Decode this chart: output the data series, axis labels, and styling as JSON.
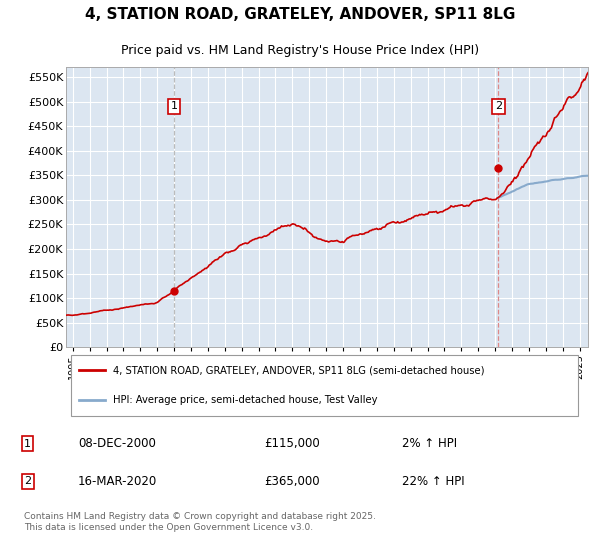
{
  "title": "4, STATION ROAD, GRATELEY, ANDOVER, SP11 8LG",
  "subtitle": "Price paid vs. HM Land Registry's House Price Index (HPI)",
  "title_fontsize": 11,
  "subtitle_fontsize": 9,
  "background_color": "#ffffff",
  "plot_bg_color": "#dce6f1",
  "grid_color": "#ffffff",
  "ylabel_ticks": [
    "£0",
    "£50K",
    "£100K",
    "£150K",
    "£200K",
    "£250K",
    "£300K",
    "£350K",
    "£400K",
    "£450K",
    "£500K",
    "£550K"
  ],
  "ytick_values": [
    0,
    50000,
    100000,
    150000,
    200000,
    250000,
    300000,
    350000,
    400000,
    450000,
    500000,
    550000
  ],
  "ylim": [
    0,
    570000
  ],
  "xlim_start": 1994.6,
  "xlim_end": 2025.5,
  "purchase1_x": 2001.0,
  "purchase1_price": 115000,
  "purchase2_x": 2020.2,
  "purchase2_price": 365000,
  "sale_color": "#cc0000",
  "hpi_color": "#88aacc",
  "vline1_color": "#cccccc",
  "vline2_color": "#dd8888",
  "legend_label_sale": "4, STATION ROAD, GRATELEY, ANDOVER, SP11 8LG (semi-detached house)",
  "legend_label_hpi": "HPI: Average price, semi-detached house, Test Valley",
  "annotation1_date": "08-DEC-2000",
  "annotation1_price": "£115,000",
  "annotation1_hpi": "2% ↑ HPI",
  "annotation2_date": "16-MAR-2020",
  "annotation2_price": "£365,000",
  "annotation2_hpi": "22% ↑ HPI",
  "footer": "Contains HM Land Registry data © Crown copyright and database right 2025.\nThis data is licensed under the Open Government Licence v3.0.",
  "xtick_years": [
    1995,
    1996,
    1997,
    1998,
    1999,
    2000,
    2001,
    2002,
    2003,
    2004,
    2005,
    2006,
    2007,
    2008,
    2009,
    2010,
    2011,
    2012,
    2013,
    2014,
    2015,
    2016,
    2017,
    2018,
    2019,
    2020,
    2021,
    2022,
    2023,
    2024,
    2025
  ]
}
